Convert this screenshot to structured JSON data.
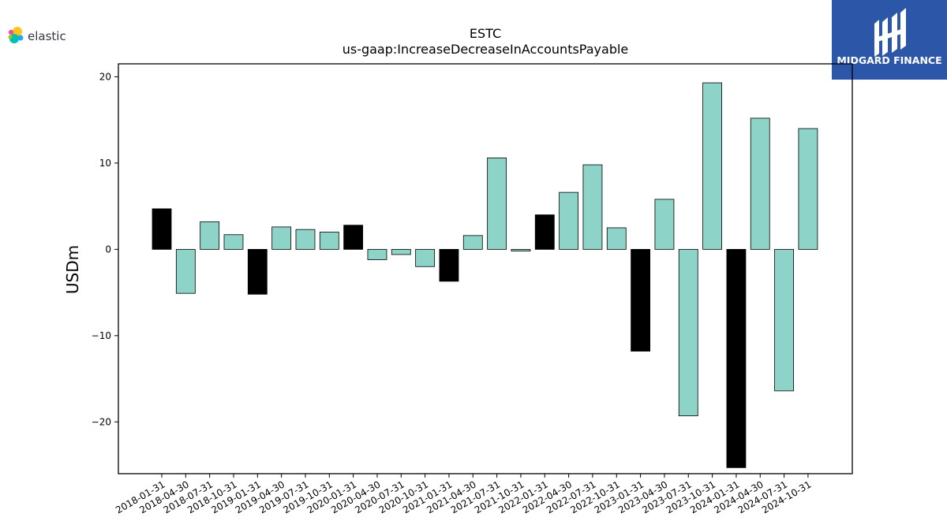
{
  "brand": {
    "logo_text": "elastic"
  },
  "watermark": {
    "text": "MIDGARD FINANCE",
    "bg_color": "#2c56a8"
  },
  "chart_data": {
    "type": "bar",
    "title": "ESTC",
    "subtitle": "us-gaap:IncreaseDecreaseInAccountsPayable",
    "ylabel": "USDm",
    "xlabel": "",
    "ylim": [
      -26,
      21.5
    ],
    "yticks": [
      -20,
      -10,
      0,
      10,
      20
    ],
    "grid": false,
    "colors": {
      "default": "#8dd3c7",
      "highlight": "#000000"
    },
    "categories": [
      "2018-01-31",
      "2018-04-30",
      "2018-07-31",
      "2018-10-31",
      "2019-01-31",
      "2019-04-30",
      "2019-07-31",
      "2019-10-31",
      "2020-01-31",
      "2020-04-30",
      "2020-07-31",
      "2020-10-31",
      "2021-01-31",
      "2021-04-30",
      "2021-07-31",
      "2021-10-31",
      "2022-01-31",
      "2022-04-30",
      "2022-07-31",
      "2022-10-31",
      "2023-01-31",
      "2023-04-30",
      "2023-07-31",
      "2023-10-31",
      "2024-01-31",
      "2024-04-30",
      "2024-07-31",
      "2024-10-31"
    ],
    "values": [
      4.7,
      -5.1,
      3.2,
      1.7,
      -5.2,
      2.6,
      2.3,
      2.0,
      2.8,
      -1.2,
      -0.6,
      -2.0,
      -3.7,
      1.6,
      10.6,
      -0.2,
      4.0,
      6.6,
      9.8,
      2.5,
      -11.8,
      5.8,
      -19.3,
      19.3,
      -25.3,
      15.2,
      -16.4,
      14.0
    ],
    "highlight": [
      true,
      false,
      false,
      false,
      true,
      false,
      false,
      false,
      true,
      false,
      false,
      false,
      true,
      false,
      false,
      false,
      true,
      false,
      false,
      false,
      true,
      false,
      false,
      false,
      true,
      false,
      false,
      false
    ]
  }
}
